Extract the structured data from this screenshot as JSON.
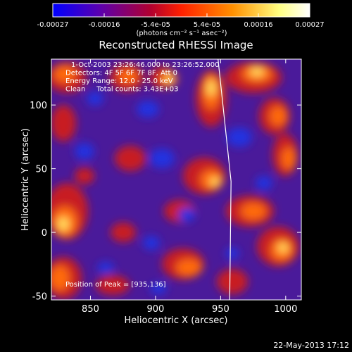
{
  "chart_data": {
    "type": "heatmap",
    "title": "Reconstructed RHESSI Image",
    "xlabel": "Heliocentric X (arcsec)",
    "ylabel": "Heliocentric Y (arcsec)",
    "xlim": [
      820,
      1012
    ],
    "ylim": [
      -53,
      136
    ],
    "xticks": [
      850,
      900,
      950,
      1000
    ],
    "yticks": [
      -50,
      0,
      50,
      100
    ],
    "colorbar": {
      "ticks": [
        "-0.00027",
        "-0.00016",
        "-5.4e-05",
        "5.4e-05",
        "0.00016",
        "0.00027"
      ],
      "label": "(photons cm⁻² s⁻¹ asec⁻²)",
      "colors": [
        "#0000ff",
        "#5a00b0",
        "#b00030",
        "#ff2000",
        "#ff9000",
        "#ffff80",
        "#ffffff"
      ]
    },
    "info_lines": [
      "1-Oct-2003 23:26:46.000 to 23:26:52.000",
      "Detectors: 4F 5F 6F 7F 8F, Att 0",
      "Energy Range: 12.0 - 25.0 keV",
      "Clean     Total counts: 3.43E+03"
    ],
    "peak_text": "Position of Peak = [935,136]",
    "peak_position": [
      935,
      136
    ],
    "limb_line": [
      [
        948,
        136
      ],
      [
        958,
        40
      ],
      [
        957,
        -53
      ]
    ]
  },
  "footer": {
    "date": "22-May-2013 17:12"
  }
}
